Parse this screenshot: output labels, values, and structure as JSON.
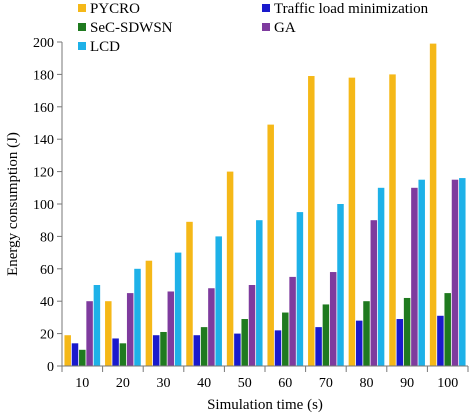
{
  "chart_data": {
    "type": "bar",
    "xlabel": "Simulation time (s)",
    "ylabel": "Energy consumption (J)",
    "ylim": [
      0,
      200
    ],
    "yticks": [
      0,
      20,
      40,
      60,
      80,
      100,
      120,
      140,
      160,
      180,
      200
    ],
    "categories": [
      "10",
      "20",
      "30",
      "40",
      "50",
      "60",
      "70",
      "80",
      "90",
      "100"
    ],
    "legend_position": "top",
    "grid": false,
    "series": [
      {
        "name": "PYCRO",
        "color": "#F5B818",
        "values": [
          19,
          40,
          65,
          89,
          120,
          149,
          179,
          178,
          180,
          199
        ]
      },
      {
        "name": "Traffic load minimization",
        "color": "#1A1ACC",
        "values": [
          14,
          17,
          19,
          19,
          20,
          22,
          24,
          28,
          29,
          31
        ]
      },
      {
        "name": "SeC-SDWSN",
        "color": "#1F7A1F",
        "values": [
          10,
          14,
          21,
          24,
          29,
          33,
          38,
          40,
          42,
          45
        ]
      },
      {
        "name": "GA",
        "color": "#7E3B9E",
        "values": [
          40,
          45,
          46,
          48,
          50,
          55,
          58,
          90,
          110,
          115
        ]
      },
      {
        "name": "LCD",
        "color": "#1EB1E8",
        "values": [
          50,
          60,
          70,
          80,
          90,
          95,
          100,
          110,
          115,
          116
        ]
      }
    ]
  }
}
